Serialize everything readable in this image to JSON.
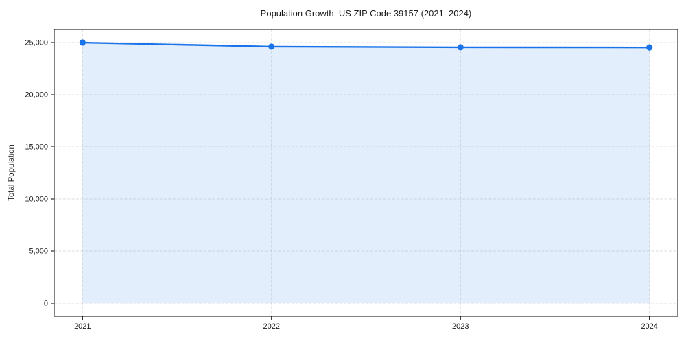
{
  "chart_data": {
    "type": "line",
    "title": "Population Growth: US ZIP Code 39157 (2021–2024)",
    "ylabel": "Total Population",
    "xlabel": "",
    "x": [
      2021,
      2022,
      2023,
      2024
    ],
    "xtick_labels": [
      "2021",
      "2022",
      "2023",
      "2024"
    ],
    "series": [
      {
        "name": "Total Population",
        "values": [
          25000,
          24610,
          24545,
          24530
        ]
      }
    ],
    "yticks": [
      0,
      5000,
      10000,
      15000,
      20000,
      25000
    ],
    "ytick_labels": [
      "0",
      "5,000",
      "10,000",
      "15,000",
      "20,000",
      "25,000"
    ],
    "xlim": [
      2020.85,
      2024.15
    ],
    "ylim": [
      -1250,
      26250
    ],
    "grid": true,
    "grid_style": "dashed",
    "legend": "none",
    "area_fill": true,
    "area_base": 0,
    "line_color": "#1a73e8",
    "fill_color": "rgba(26,115,232,0.12)",
    "marker": "circle",
    "frame_color": "#000000"
  }
}
